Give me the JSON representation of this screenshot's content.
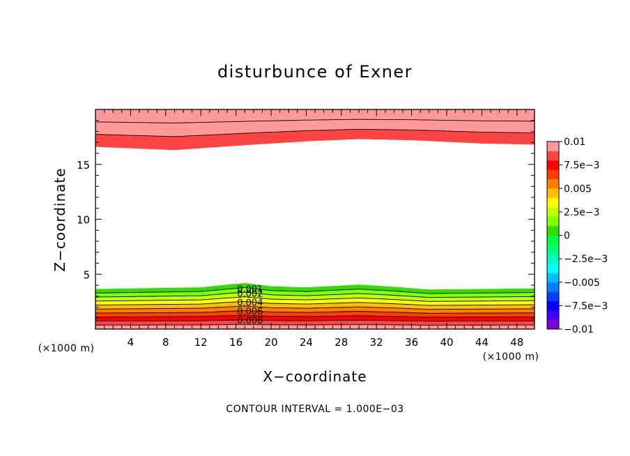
{
  "chart_data": {
    "type": "contour",
    "title": "disturbunce of Exner",
    "xlabel": "X−coordinate",
    "ylabel": "Z−coordinate",
    "x_unit": "(×1000 m)",
    "y_unit": "(×1000 m)",
    "xlim": [
      0,
      50
    ],
    "ylim": [
      0,
      20
    ],
    "xticks": [
      4,
      8,
      12,
      16,
      20,
      24,
      28,
      32,
      36,
      40,
      44,
      48
    ],
    "yticks": [
      5,
      10,
      15
    ],
    "footer": "CONTOUR INTERVAL = 1.000E−03",
    "colorbar": {
      "tick_labels": [
        "0.01",
        "7.5e−3",
        "0.005",
        "2.5e−3",
        "0",
        "−2.5e−3",
        "−0.005",
        "−7.5e−3",
        "−0.01"
      ],
      "tick_values": [
        0.01,
        0.0075,
        0.005,
        0.0025,
        0,
        -0.0025,
        -0.005,
        -0.0075,
        -0.01
      ],
      "range": [
        -0.01,
        0.01
      ],
      "colors_low_to_high": [
        "#7f00cf",
        "#3f00ff",
        "#0000ff",
        "#003fff",
        "#007fff",
        "#00bfff",
        "#00ffff",
        "#00ffbf",
        "#00ff7f",
        "#00ff3f",
        "#33dd00",
        "#7fff00",
        "#bfff00",
        "#ffff00",
        "#ffbf00",
        "#ff7f00",
        "#ff3f00",
        "#ff0000",
        "#ff4444",
        "#ff9999"
      ]
    },
    "contour_labels": [
      "0.008",
      "0.006",
      "0.004",
      "0.002",
      "0.001"
    ],
    "contour_label_x": 18,
    "contour_interval": 0.001,
    "bottom_levels": [
      0.001,
      0.002,
      0.003,
      0.004,
      0.005,
      0.006,
      0.007,
      0.008,
      0.009,
      0.01
    ],
    "bottom_height": [
      {
        "x": 0,
        "z": 3.65
      },
      {
        "x": 8,
        "z": 3.75
      },
      {
        "x": 12,
        "z": 3.8
      },
      {
        "x": 15,
        "z": 4.05
      },
      {
        "x": 17,
        "z": 4.2
      },
      {
        "x": 20,
        "z": 3.9
      },
      {
        "x": 24,
        "z": 3.8
      },
      {
        "x": 30,
        "z": 4.05
      },
      {
        "x": 34,
        "z": 3.85
      },
      {
        "x": 38,
        "z": 3.6
      },
      {
        "x": 44,
        "z": 3.65
      },
      {
        "x": 50,
        "z": 3.7
      }
    ],
    "top_levels": [
      0.01,
      0.009,
      0.008
    ],
    "top_boundary": [
      {
        "x": 0,
        "z": 16.6
      },
      {
        "x": 9,
        "z": 16.3
      },
      {
        "x": 18,
        "z": 16.8
      },
      {
        "x": 24,
        "z": 17.1
      },
      {
        "x": 30,
        "z": 17.3
      },
      {
        "x": 36,
        "z": 17.2
      },
      {
        "x": 44,
        "z": 16.9
      },
      {
        "x": 50,
        "z": 16.8
      }
    ]
  }
}
